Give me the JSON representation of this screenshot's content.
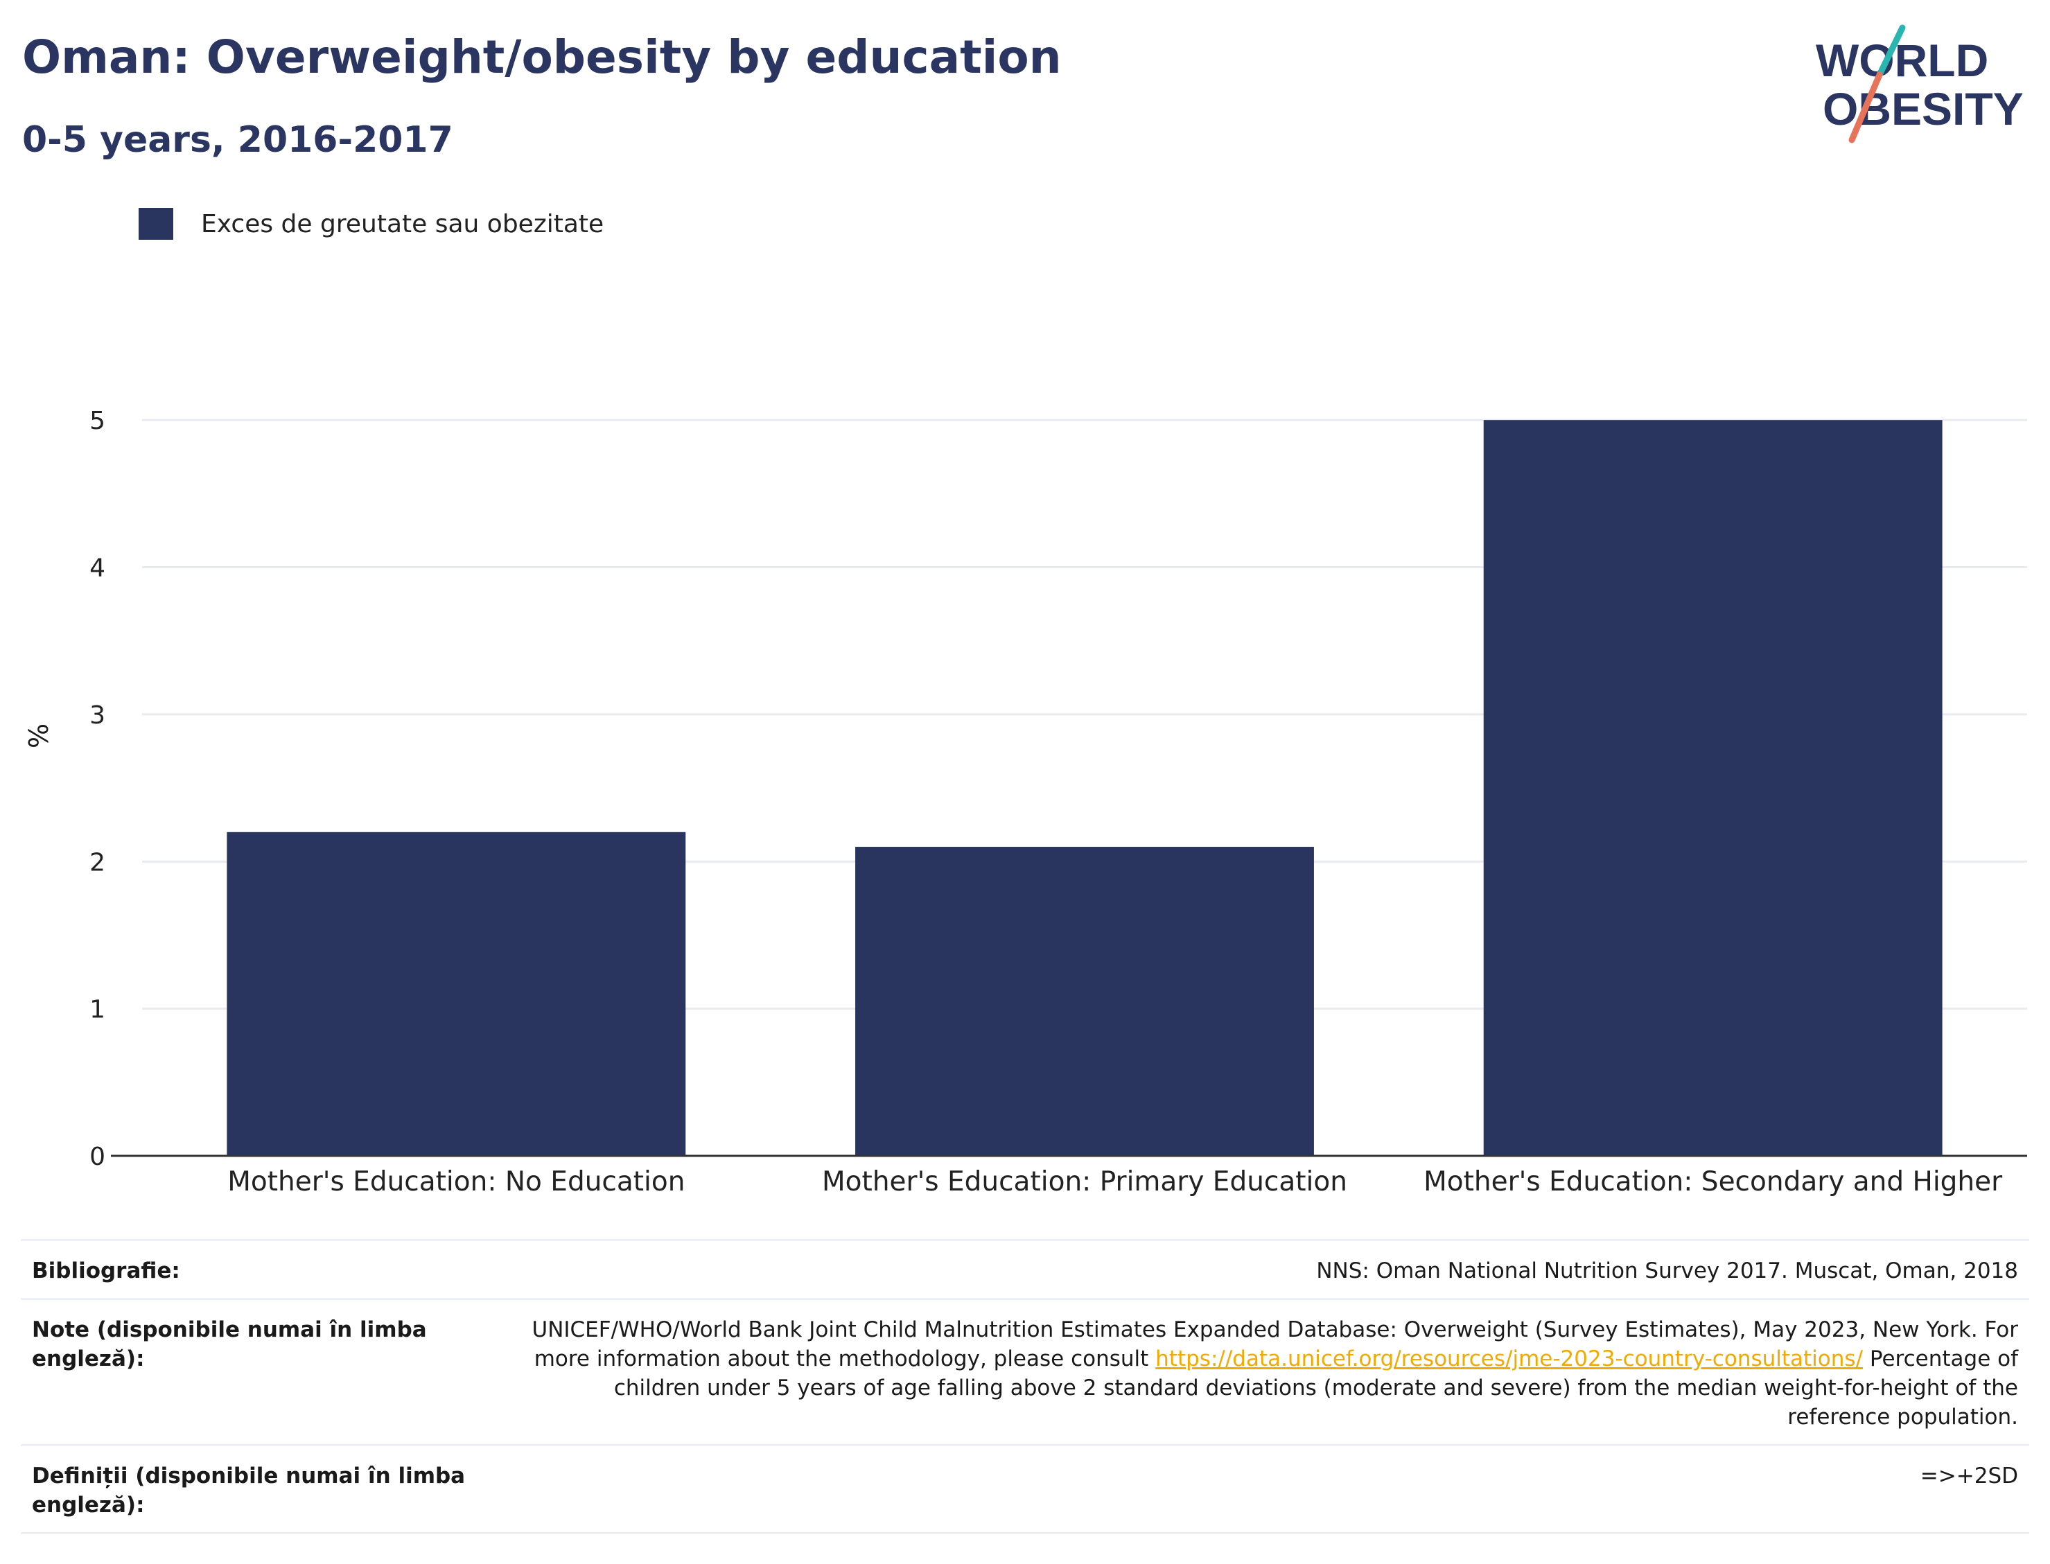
{
  "header": {
    "title": "Oman: Overweight/obesity by education",
    "subtitle": "0-5 years, 2016-2017"
  },
  "logo": {
    "line1": "WORLD",
    "line2": "OBESITY",
    "accent_teal": "#2bb5b1",
    "accent_coral": "#e7735b",
    "text_color": "#2a3561"
  },
  "colors": {
    "bar": "#29355f",
    "grid": "#e8eaf0",
    "axis": "#333333",
    "link": "#f2a900"
  },
  "chart_data": {
    "type": "bar",
    "title": "Oman: Overweight/obesity by education",
    "subtitle": "0-5 years, 2016-2017",
    "categories": [
      "Mother's Education: No Education",
      "Mother's Education: Primary Education",
      "Mother's Education: Secondary and Higher"
    ],
    "series": [
      {
        "name": "Exces de greutate sau obezitate",
        "values": [
          2.2,
          2.1,
          5.0
        ]
      }
    ],
    "ylabel": "%",
    "xlabel": "",
    "ylim": [
      0,
      5.5
    ],
    "yticks": [
      "0",
      "1",
      "2",
      "3",
      "4",
      "5"
    ],
    "grid": true,
    "legend": "top-left"
  },
  "notes": {
    "bibliography_label": "Bibliografie:",
    "bibliography_value": "NNS: Oman National Nutrition Survey 2017. Muscat, Oman, 2018",
    "notes_label": "Note (disponibile numai în limba engleză):",
    "notes_text_1": "UNICEF/WHO/World Bank Joint Child Malnutrition Estimates Expanded Database: Overweight (Survey Estimates), May 2023, New York. For more information about the methodology, please consult ",
    "notes_link": "https://data.unicef.org/resources/jme-2023-country-consultations/",
    "notes_text_2": "Percentage of children under 5 years of age falling above 2 standard deviations (moderate and severe) from the median weight-for-height of the reference population.",
    "definitions_label": "Definiții (disponibile numai în limba engleză):",
    "definitions_value": "=>+2SD"
  }
}
